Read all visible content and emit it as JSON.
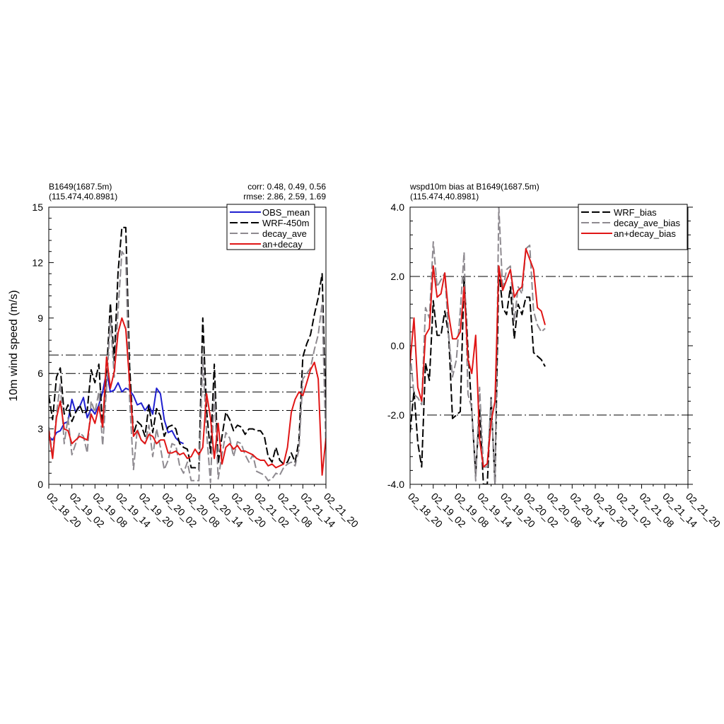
{
  "chart_data": [
    {
      "type": "line",
      "title_left": [
        "B1649(1687.5m)",
        "(115.474,40.8981)"
      ],
      "title_right": [
        "corr:  0.48, 0.49, 0.56",
        "rmse: 2.86, 2.59, 1.69"
      ],
      "ylabel": "10m wind speed (m/s)",
      "xlim": [
        0,
        72
      ],
      "ylim": [
        0,
        15
      ],
      "yticks": [
        0,
        3,
        6,
        9,
        12,
        15
      ],
      "ytick_labels": [
        "0",
        "3",
        "6",
        "9",
        "12",
        "15"
      ],
      "xticks": [
        0,
        6,
        12,
        18,
        24,
        30,
        36,
        42,
        48,
        54,
        60,
        66,
        72
      ],
      "xtick_labels": [
        "02_18_20",
        "02_19_02",
        "02_19_08",
        "02_19_14",
        "02_19_20",
        "02_20_02",
        "02_20_08",
        "02_20_14",
        "02_20_20",
        "02_21_02",
        "02_21_08",
        "02_21_14",
        "02_21_20"
      ],
      "ref_lines": [
        4,
        5,
        6,
        7
      ],
      "legend_position": "top-right",
      "series": [
        {
          "name": "OBS_mean",
          "color": "#1f1fd0",
          "dash": "solid",
          "x": [
            0,
            1,
            2,
            3,
            4,
            5,
            6,
            7,
            8,
            9,
            10,
            11,
            12,
            13,
            14,
            15,
            16,
            17,
            18,
            19,
            20,
            21,
            22,
            23,
            24,
            25,
            26,
            27,
            28,
            29,
            30,
            31,
            32,
            33,
            34,
            35
          ],
          "y": [
            2.6,
            2.4,
            2.8,
            2.9,
            3.3,
            3.4,
            4.6,
            3.9,
            4.2,
            4.7,
            3.6,
            4.1,
            3.8,
            4.3,
            5.0,
            6.1,
            5.0,
            5.1,
            5.5,
            5.0,
            5.2,
            5.1,
            4.8,
            4.3,
            4.4,
            4.0,
            4.3,
            3.8,
            5.2,
            4.9,
            3.5,
            2.8,
            2.9,
            2.5,
            2.3,
            2.2
          ]
        },
        {
          "name": "WRF-450m",
          "color": "#000000",
          "dash": "long",
          "x": [
            0,
            1,
            2,
            3,
            4,
            5,
            6,
            7,
            8,
            9,
            10,
            11,
            12,
            13,
            14,
            15,
            16,
            17,
            18,
            19,
            20,
            21,
            22,
            23,
            24,
            25,
            26,
            27,
            28,
            29,
            30,
            31,
            32,
            33,
            34,
            35,
            36,
            37,
            38,
            39,
            40,
            41,
            42,
            43,
            44,
            45,
            46,
            47,
            48,
            49,
            50,
            51,
            52,
            53,
            54,
            55,
            56,
            57,
            58,
            59,
            60,
            61,
            62,
            63,
            64,
            65,
            66,
            67,
            68,
            69,
            70,
            71,
            72
          ],
          "y": [
            4.8,
            3.5,
            5.8,
            6.3,
            3.8,
            4.3,
            3.4,
            3.9,
            4.3,
            3.8,
            4.0,
            6.2,
            5.5,
            6.5,
            3.1,
            6.0,
            9.8,
            6.7,
            11.5,
            13.9,
            13.9,
            6.4,
            2.7,
            3.4,
            3.2,
            2.6,
            4.3,
            2.8,
            4.1,
            3.7,
            2.6,
            3.1,
            3.2,
            3.0,
            2.2,
            2.0,
            1.9,
            0.9,
            0.9,
            0.8,
            9.0,
            4.0,
            1.7,
            6.5,
            1.1,
            2.6,
            3.9,
            3.5,
            2.9,
            3.2,
            3.1,
            2.7,
            3.0,
            3.0,
            2.9,
            2.9,
            2.6,
            1.5,
            1.2,
            2.0,
            1.3,
            1.1,
            1.2,
            1.7,
            1.2,
            2.4,
            6.9,
            7.6,
            8.1,
            9.2,
            10.1,
            11.4,
            3.8
          ]
        },
        {
          "name": "decay_ave",
          "color": "#8e8a90",
          "dash": "long",
          "x": [
            0,
            1,
            2,
            3,
            4,
            5,
            6,
            7,
            8,
            9,
            10,
            11,
            12,
            13,
            14,
            15,
            16,
            17,
            18,
            19,
            20,
            21,
            22,
            23,
            24,
            25,
            26,
            27,
            28,
            29,
            30,
            31,
            32,
            33,
            34,
            35,
            36,
            37,
            38,
            39,
            40,
            41,
            42,
            43,
            44,
            45,
            46,
            47,
            48,
            49,
            50,
            51,
            52,
            53,
            54,
            55,
            56,
            57,
            58,
            59,
            60,
            61,
            62,
            63,
            64,
            65,
            66,
            67,
            68,
            69,
            70,
            71,
            72
          ],
          "y": [
            3.1,
            1.5,
            3.8,
            5.5,
            2.2,
            3.6,
            1.6,
            2.2,
            2.8,
            2.6,
            1.7,
            4.5,
            3.9,
            5.0,
            2.1,
            5.2,
            9.0,
            5.8,
            9.4,
            12.6,
            12.3,
            4.6,
            0.8,
            3.0,
            2.4,
            2.2,
            3.2,
            1.5,
            3.0,
            2.0,
            0.8,
            1.3,
            2.2,
            2.1,
            1.0,
            0.6,
            1.2,
            0.2,
            0.2,
            0.2,
            6.8,
            2.8,
            0.1,
            5.0,
            0.3,
            1.6,
            2.8,
            2.5,
            1.5,
            2.3,
            2.2,
            1.6,
            1.2,
            1.6,
            0.7,
            0.6,
            0.5,
            0.2,
            0.3,
            0.6,
            0.5,
            0.9,
            1.1,
            1.2,
            1.0,
            1.9,
            5.7,
            6.0,
            6.3,
            7.3,
            8.1,
            9.8,
            2.0
          ]
        },
        {
          "name": "an+decay",
          "color": "#e01616",
          "dash": "solid",
          "x": [
            0,
            1,
            2,
            3,
            4,
            5,
            6,
            7,
            8,
            9,
            10,
            11,
            12,
            13,
            14,
            15,
            16,
            17,
            18,
            19,
            20,
            21,
            22,
            23,
            24,
            25,
            26,
            27,
            28,
            29,
            30,
            31,
            32,
            33,
            34,
            35,
            36,
            37,
            38,
            39,
            40,
            41,
            42,
            43,
            44,
            45,
            46,
            47,
            48,
            49,
            50,
            51,
            52,
            53,
            54,
            55,
            56,
            57,
            58,
            59,
            60,
            61,
            62,
            63,
            64,
            65,
            66,
            67,
            68,
            69,
            70,
            71,
            72
          ],
          "y": [
            2.9,
            1.4,
            3.6,
            4.5,
            3.0,
            2.9,
            2.2,
            2.4,
            2.6,
            2.5,
            2.4,
            3.8,
            3.3,
            4.2,
            3.1,
            6.9,
            5.2,
            6.1,
            8.2,
            9.0,
            8.4,
            5.5,
            2.6,
            2.9,
            2.4,
            2.2,
            2.7,
            2.6,
            2.2,
            2.4,
            2.4,
            1.7,
            1.7,
            1.8,
            1.6,
            1.7,
            1.4,
            1.5,
            1.9,
            1.6,
            2.0,
            4.9,
            3.6,
            1.4,
            3.3,
            1.1,
            2.0,
            2.2,
            1.9,
            2.1,
            1.8,
            1.8,
            1.7,
            1.6,
            1.4,
            1.3,
            1.3,
            1.0,
            1.1,
            0.9,
            1.0,
            1.1,
            2.0,
            3.9,
            4.6,
            5.0,
            4.8,
            5.5,
            6.2,
            6.6,
            5.7,
            0.5,
            2.5
          ]
        }
      ]
    },
    {
      "type": "line",
      "title_left": [
        "wspd10m bias at B1649(1687.5m)",
        "(115.474,40.8981)"
      ],
      "xlim": [
        0,
        72
      ],
      "ylim": [
        -4,
        4
      ],
      "yticks": [
        -4,
        -2,
        0,
        2,
        4
      ],
      "ytick_labels": [
        "-4.0",
        "-2.0",
        "0.0",
        "2.0",
        "4.0"
      ],
      "xticks": [
        0,
        6,
        12,
        18,
        24,
        30,
        36,
        42,
        48,
        54,
        60,
        66,
        72
      ],
      "xtick_labels": [
        "02_18_20",
        "02_19_02",
        "02_19_08",
        "02_19_14",
        "02_19_20",
        "02_20_02",
        "02_20_08",
        "02_20_14",
        "02_20_20",
        "02_21_02",
        "02_21_08",
        "02_21_14",
        "02_21_20"
      ],
      "ref_lines": [
        -2,
        2
      ],
      "legend_position": "top-right",
      "series": [
        {
          "name": "WRF_bias",
          "color": "#000000",
          "dash": "long",
          "x": [
            0,
            1,
            2,
            3,
            4,
            5,
            6,
            7,
            8,
            9,
            10,
            11,
            12,
            13,
            14,
            15,
            16,
            17,
            18,
            19,
            20,
            21,
            22,
            23,
            24,
            25,
            26,
            27,
            28,
            29,
            30,
            31,
            32,
            33,
            34,
            35
          ],
          "y": [
            -2.5,
            -1.3,
            -2.8,
            -3.5,
            -0.5,
            -1.0,
            1.3,
            0.3,
            0.3,
            1.0,
            0.3,
            -2.1,
            -2.0,
            -1.9,
            2.0,
            -0.1,
            -1.9,
            -3.7,
            -1.8,
            -4.0,
            -4.0,
            -1.5,
            -4.0,
            2.2,
            1.1,
            0.9,
            1.7,
            0.2,
            1.2,
            0.9,
            1.4,
            1.4,
            -0.2,
            -0.3,
            -0.4,
            -0.6
          ]
        },
        {
          "name": "decay_ave_bias",
          "color": "#8e8a90",
          "dash": "long",
          "x": [
            0,
            1,
            2,
            3,
            4,
            5,
            6,
            7,
            8,
            9,
            10,
            11,
            12,
            13,
            14,
            15,
            16,
            17,
            18,
            19,
            20,
            21,
            22,
            23,
            24,
            25,
            26,
            27,
            28,
            29,
            30,
            31,
            32,
            33,
            34,
            35
          ],
          "y": [
            -0.2,
            -1.4,
            -1.5,
            -1.7,
            1.1,
            0.8,
            3.0,
            1.7,
            1.9,
            2.1,
            0.3,
            -0.9,
            -0.4,
            1.0,
            2.7,
            -1.4,
            -1.8,
            -3.9,
            -1.2,
            -3.5,
            -3.5,
            -1.5,
            -4.0,
            4.0,
            1.6,
            2.2,
            2.3,
            0.7,
            1.7,
            1.5,
            2.8,
            2.9,
            1.0,
            0.6,
            0.4,
            0.5
          ]
        },
        {
          "name": "an+decay_bias",
          "color": "#e01616",
          "dash": "solid",
          "x": [
            0,
            1,
            2,
            3,
            4,
            5,
            6,
            7,
            8,
            9,
            10,
            11,
            12,
            13,
            14,
            15,
            16,
            17,
            18,
            19,
            20,
            21,
            22,
            23,
            24,
            25,
            26,
            27,
            28,
            29,
            30,
            31,
            32,
            33,
            34,
            35
          ],
          "y": [
            -0.5,
            0.8,
            -1.2,
            -1.6,
            0.3,
            0.5,
            2.3,
            1.4,
            1.5,
            2.1,
            0.9,
            0.2,
            0.2,
            0.4,
            1.7,
            -0.4,
            -0.8,
            0.3,
            -2.7,
            -3.5,
            -3.4,
            -2.2,
            -1.6,
            2.3,
            1.6,
            1.9,
            2.2,
            1.4,
            1.6,
            1.7,
            2.8,
            2.5,
            2.2,
            1.1,
            1.0,
            0.6
          ]
        }
      ]
    }
  ]
}
